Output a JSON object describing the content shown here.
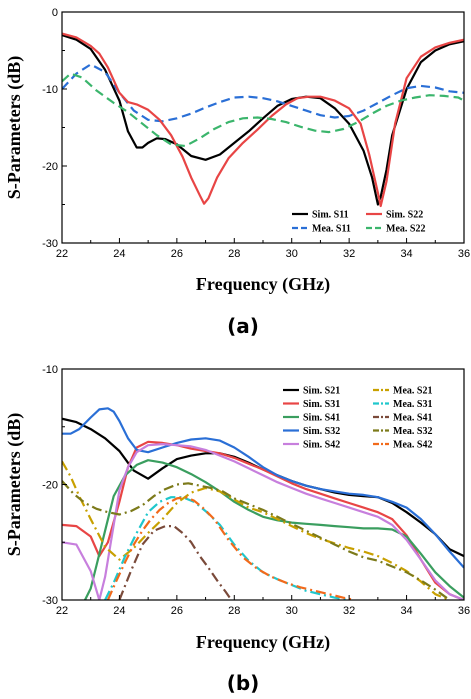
{
  "chart_data": [
    {
      "panel_label": "(a)",
      "type": "line",
      "xlabel": "Frequency (GHz)",
      "ylabel": "S-Parameters (dB)",
      "xlim": [
        22,
        36
      ],
      "ylim": [
        -30,
        0
      ],
      "xticks": [
        "22",
        "24",
        "26",
        "28",
        "30",
        "32",
        "34",
        "36"
      ],
      "yticks": [
        "0",
        "-10",
        "-20",
        "-30"
      ],
      "legend_position": "bottom-right",
      "series": [
        {
          "name": "Sim. S11",
          "color": "#000000",
          "dash": "solid",
          "x": [
            22,
            22.5,
            23,
            23.5,
            24,
            24.3,
            24.6,
            24.8,
            25,
            25.3,
            25.6,
            26,
            26.5,
            27,
            27.5,
            28,
            28.5,
            29,
            29.5,
            30,
            30.5,
            31,
            31.5,
            32,
            32.5,
            32.8,
            33,
            33.1,
            33.3,
            33.5,
            34,
            34.5,
            35,
            35.5,
            36
          ],
          "y": [
            -3,
            -3.6,
            -4.8,
            -7.5,
            -11.5,
            -15.5,
            -17.6,
            -17.6,
            -17,
            -16.4,
            -16.5,
            -17.2,
            -18.7,
            -19.2,
            -18.5,
            -17,
            -15.5,
            -13.8,
            -12.2,
            -11.3,
            -11,
            -11.2,
            -12.5,
            -14.5,
            -18,
            -21.5,
            -25,
            -24,
            -20.5,
            -16,
            -10,
            -6.5,
            -5,
            -4.2,
            -3.8
          ]
        },
        {
          "name": "Mea. S11",
          "color": "#2a6fd6",
          "dash": "long",
          "x": [
            22,
            22.5,
            23,
            23.5,
            24,
            24.5,
            25,
            25.5,
            26,
            26.5,
            27,
            27.5,
            28,
            28.5,
            29,
            29.5,
            30,
            30.5,
            31,
            31.5,
            32,
            32.5,
            33,
            33.5,
            34,
            34.5,
            35,
            35.5,
            36
          ],
          "y": [
            -10,
            -8,
            -6.8,
            -7.8,
            -10.5,
            -12.8,
            -14,
            -14.2,
            -13.8,
            -13.2,
            -12.4,
            -11.7,
            -11.1,
            -11,
            -11.2,
            -11.6,
            -12.2,
            -12.8,
            -13.4,
            -13.7,
            -13.5,
            -12.8,
            -11.8,
            -10.8,
            -9.9,
            -9.6,
            -9.8,
            -10.3,
            -10.5
          ]
        },
        {
          "name": "Sim. S22",
          "color": "#e84545",
          "dash": "solid",
          "x": [
            22,
            22.5,
            23,
            23.3,
            23.6,
            24,
            24.3,
            24.6,
            25,
            25.4,
            25.8,
            26.2,
            26.5,
            26.8,
            26.95,
            27.1,
            27.4,
            27.8,
            28.3,
            28.8,
            29.3,
            29.8,
            30.2,
            30.6,
            31,
            31.5,
            32,
            32.4,
            32.7,
            33,
            33.1,
            33.3,
            33.6,
            34,
            34.5,
            35,
            35.5,
            36
          ],
          "y": [
            -2.8,
            -3.3,
            -4.4,
            -5.4,
            -7.2,
            -10.5,
            -11.7,
            -12,
            -12.7,
            -14,
            -16,
            -18.8,
            -21.5,
            -23.8,
            -24.9,
            -24.2,
            -21.5,
            -19,
            -17,
            -15.3,
            -13.5,
            -12,
            -11.2,
            -11,
            -11,
            -11.5,
            -12.5,
            -14.5,
            -18.5,
            -23.5,
            -25.2,
            -22,
            -14.5,
            -8.6,
            -5.8,
            -4.6,
            -4,
            -3.6
          ]
        },
        {
          "name": "Mea. S22",
          "color": "#3bb56c",
          "dash": "long",
          "x": [
            22,
            22.3,
            22.7,
            23.2,
            23.8,
            24.3,
            24.8,
            25.3,
            25.8,
            26.3,
            26.8,
            27.3,
            27.8,
            28.3,
            28.8,
            29.3,
            29.8,
            30.3,
            30.8,
            31.3,
            31.8,
            32.3,
            32.8,
            33.3,
            33.8,
            34.3,
            34.8,
            35.3,
            35.8,
            36
          ],
          "y": [
            -9,
            -8,
            -8.5,
            -10.2,
            -11.8,
            -13,
            -14.5,
            -16,
            -17.2,
            -17.4,
            -16.4,
            -15.2,
            -14.3,
            -13.8,
            -13.7,
            -13.9,
            -14.3,
            -14.9,
            -15.4,
            -15.6,
            -15.2,
            -14.3,
            -13.2,
            -12.2,
            -11.5,
            -11.1,
            -10.8,
            -10.9,
            -11.1,
            -11.5
          ]
        }
      ]
    },
    {
      "panel_label": "(b)",
      "type": "line",
      "xlabel": "Frequency (GHz)",
      "ylabel": "S-Parameters (dB)",
      "xlim": [
        22,
        36
      ],
      "ylim": [
        -30,
        -10
      ],
      "xticks": [
        "22",
        "24",
        "26",
        "28",
        "30",
        "32",
        "34",
        "36"
      ],
      "yticks": [
        "-10",
        "-20",
        "-30"
      ],
      "legend_position": "top-right",
      "series": [
        {
          "name": "Sim. S21",
          "color": "#000000",
          "dash": "solid",
          "x": [
            22,
            22.5,
            23,
            23.5,
            24,
            24.5,
            25,
            25.5,
            26,
            26.5,
            27,
            27.5,
            28,
            28.5,
            29,
            29.5,
            30,
            30.5,
            31,
            31.5,
            32,
            32.5,
            33,
            33.5,
            34,
            34.5,
            35,
            35.5,
            36
          ],
          "y": [
            -14.3,
            -14.6,
            -15.2,
            -16,
            -17.1,
            -18.8,
            -19.5,
            -18.6,
            -17.8,
            -17.5,
            -17.3,
            -17.3,
            -17.6,
            -18.1,
            -18.7,
            -19.2,
            -19.7,
            -20.1,
            -20.4,
            -20.7,
            -20.9,
            -21,
            -21.1,
            -21.6,
            -22.4,
            -23.3,
            -24.3,
            -25.6,
            -26.2
          ]
        },
        {
          "name": "Sim. S31",
          "color": "#e84545",
          "dash": "solid",
          "x": [
            22,
            22.5,
            23,
            23.3,
            23.6,
            24,
            24.3,
            24.6,
            25,
            25.5,
            26,
            26.5,
            27,
            27.5,
            28,
            28.5,
            29,
            29.5,
            30,
            30.5,
            31,
            31.5,
            32,
            32.5,
            33,
            33.5,
            34,
            34.5,
            35,
            35.5,
            36
          ],
          "y": [
            -23.5,
            -23.6,
            -24.5,
            -26.2,
            -25,
            -21.5,
            -18.5,
            -16.8,
            -16.3,
            -16.4,
            -16.6,
            -16.9,
            -17.1,
            -17.3,
            -17.7,
            -18.2,
            -18.7,
            -19.3,
            -19.9,
            -20.4,
            -20.8,
            -21.2,
            -21.6,
            -22,
            -22.4,
            -23,
            -24.4,
            -26.5,
            -28.5,
            -29.5,
            -30
          ]
        },
        {
          "name": "Sim. S41",
          "color": "#3a9e5f",
          "dash": "solid",
          "x": [
            22.8,
            23,
            23.2,
            23.5,
            23.8,
            24.2,
            24.6,
            25,
            25.5,
            26,
            26.5,
            27,
            27.5,
            28,
            28.5,
            29,
            29.5,
            30,
            30.5,
            31,
            31.5,
            32,
            32.5,
            33,
            33.5,
            34,
            34.5,
            35,
            35.5,
            36
          ],
          "y": [
            -30,
            -29,
            -27,
            -24,
            -21,
            -19.2,
            -18.3,
            -17.9,
            -18.1,
            -18.5,
            -19.1,
            -19.8,
            -20.6,
            -21.5,
            -22.2,
            -22.8,
            -23.1,
            -23.3,
            -23.4,
            -23.5,
            -23.6,
            -23.7,
            -23.8,
            -23.8,
            -23.9,
            -24.5,
            -26,
            -27.6,
            -28.8,
            -29.8
          ]
        },
        {
          "name": "Sim. S32",
          "color": "#2a6fd6",
          "dash": "solid",
          "x": [
            22,
            22.3,
            22.6,
            23,
            23.3,
            23.6,
            23.8,
            24,
            24.3,
            24.6,
            25,
            25.5,
            26,
            26.5,
            27,
            27.5,
            28,
            28.5,
            29,
            29.5,
            30,
            30.5,
            31,
            31.5,
            32,
            32.5,
            33,
            33.5,
            34,
            34.5,
            35,
            35.5,
            36
          ],
          "y": [
            -15.6,
            -15.6,
            -15.2,
            -14.2,
            -13.5,
            -13.4,
            -13.7,
            -14.5,
            -16,
            -17,
            -17.2,
            -16.8,
            -16.4,
            -16.1,
            -16,
            -16.2,
            -16.8,
            -17.6,
            -18.5,
            -19.2,
            -19.7,
            -20.1,
            -20.4,
            -20.6,
            -20.8,
            -20.9,
            -21.1,
            -21.5,
            -22,
            -23,
            -24.3,
            -25.8,
            -27.2
          ]
        },
        {
          "name": "Sim. S42",
          "color": "#c77fdd",
          "dash": "solid",
          "x": [
            22,
            22.5,
            23,
            23.3,
            23.5,
            23.8,
            24,
            24.3,
            24.6,
            25,
            25.5,
            26,
            26.5,
            27,
            27.5,
            28,
            28.5,
            29,
            29.5,
            30,
            30.5,
            31,
            31.5,
            32,
            32.5,
            33,
            33.5,
            34,
            34.5,
            35,
            35.5,
            36
          ],
          "y": [
            -25,
            -25.2,
            -27.5,
            -30,
            -28,
            -23.5,
            -20.5,
            -18.5,
            -17.2,
            -16.6,
            -16.5,
            -16.6,
            -16.7,
            -17,
            -17.5,
            -18,
            -18.6,
            -19.2,
            -19.8,
            -20.3,
            -20.8,
            -21.2,
            -21.6,
            -22,
            -22.4,
            -22.8,
            -23.5,
            -24.8,
            -26.5,
            -28.3,
            -29.5,
            -30
          ]
        },
        {
          "name": "Mea. S21",
          "color": "#c8a000",
          "dash": "dashdot",
          "x": [
            22,
            22.3,
            22.6,
            23,
            23.5,
            24,
            24.5,
            25,
            25.5,
            26,
            26.5,
            27,
            27.5,
            28,
            28.5,
            29,
            29.5,
            30,
            30.5,
            31,
            31.5,
            32,
            32.5,
            33,
            33.5,
            34,
            34.5,
            35,
            35.5
          ],
          "y": [
            -18,
            -19.3,
            -21,
            -23,
            -25.4,
            -26.5,
            -25.5,
            -24.2,
            -23,
            -21.6,
            -20.7,
            -20.3,
            -20.6,
            -21.3,
            -22,
            -22.4,
            -23,
            -23.6,
            -24.2,
            -24.7,
            -25.1,
            -25.5,
            -25.8,
            -26.2,
            -26.8,
            -27.5,
            -28.4,
            -29.5,
            -30
          ]
        },
        {
          "name": "Mea. S31",
          "color": "#1fc7cc",
          "dash": "dashdot",
          "x": [
            23.5,
            23.8,
            24.2,
            24.6,
            25,
            25.4,
            25.8,
            26.2,
            26.6,
            27,
            27.5,
            28,
            28.5,
            29,
            29.5,
            30,
            30.5,
            31,
            31.5,
            32
          ],
          "y": [
            -30,
            -28.5,
            -26.2,
            -24.2,
            -22.4,
            -21.5,
            -21.1,
            -21.1,
            -21.5,
            -22.3,
            -23.5,
            -25.2,
            -26.6,
            -27.6,
            -28.2,
            -28.7,
            -29.2,
            -29.5,
            -29.8,
            -30
          ]
        },
        {
          "name": "Mea. S41",
          "color": "#7a4a3a",
          "dash": "dashdot",
          "x": [
            24,
            24.4,
            24.8,
            25.2,
            25.6,
            25.9,
            26.2,
            26.5,
            26.8,
            27.1,
            27.4,
            27.7,
            27.9
          ],
          "y": [
            -30,
            -27.5,
            -25.2,
            -24,
            -23.6,
            -23.6,
            -24.2,
            -25,
            -26.2,
            -27.2,
            -28.3,
            -29.3,
            -30
          ]
        },
        {
          "name": "Mea. S32",
          "color": "#7c7a1a",
          "dash": "dashdot",
          "x": [
            22,
            22.4,
            22.8,
            23.2,
            23.6,
            24,
            24.4,
            24.8,
            25.2,
            25.6,
            26,
            26.4,
            26.8,
            27.2,
            27.6,
            28,
            28.5,
            29,
            29.5,
            30,
            30.5,
            31,
            31.5,
            32,
            32.5,
            33,
            33.5,
            34,
            34.5,
            35,
            35.5
          ],
          "y": [
            -19.7,
            -20.8,
            -21.6,
            -22.1,
            -22.4,
            -22.6,
            -22.3,
            -21.8,
            -21,
            -20.4,
            -20,
            -19.9,
            -20.1,
            -20.3,
            -20.6,
            -21.2,
            -21.7,
            -22.2,
            -22.8,
            -23.4,
            -24,
            -24.6,
            -25.2,
            -25.8,
            -26.3,
            -26.6,
            -27.1,
            -27.6,
            -28.3,
            -29.1,
            -30
          ]
        },
        {
          "name": "Mea. S42",
          "color": "#f26a1b",
          "dash": "dashdot",
          "x": [
            23.6,
            23.9,
            24.2,
            24.5,
            24.8,
            25.1,
            25.4,
            25.7,
            26,
            26.3,
            26.6,
            26.9,
            27.3,
            27.8,
            28.3,
            28.8,
            29.3,
            29.8,
            30.3,
            30.8,
            31.3,
            31.8,
            32.2
          ],
          "y": [
            -30,
            -28.3,
            -26.7,
            -25.2,
            -24,
            -23,
            -22.2,
            -21.6,
            -21.2,
            -21.1,
            -21.4,
            -22,
            -23,
            -24.8,
            -26.3,
            -27.3,
            -28,
            -28.5,
            -28.9,
            -29.2,
            -29.5,
            -29.8,
            -30
          ]
        }
      ]
    }
  ]
}
